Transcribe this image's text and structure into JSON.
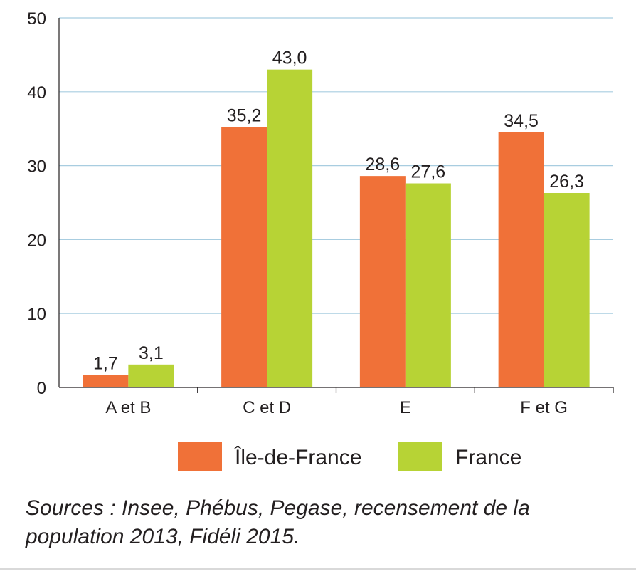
{
  "chart_data": {
    "type": "bar",
    "categories": [
      "A et B",
      "C et D",
      "E",
      "F et G"
    ],
    "series": [
      {
        "name": "Île-de-France",
        "values": [
          1.7,
          35.2,
          28.6,
          34.5
        ],
        "labels": [
          "1,7",
          "35,2",
          "28,6",
          "34,5"
        ],
        "color": "#f07138"
      },
      {
        "name": "France",
        "values": [
          3.1,
          43.0,
          27.6,
          26.3
        ],
        "labels": [
          "3,1",
          "43,0",
          "27,6",
          "26,3"
        ],
        "color": "#b7d335"
      }
    ],
    "ylim": [
      0,
      50
    ],
    "yticks": [
      0,
      10,
      20,
      30,
      40,
      50
    ],
    "grid": true,
    "grid_color": "#a8cde0",
    "legend_position": "bottom"
  },
  "source_note": "Sources : Insee, Phébus, Pegase, recensement de la population 2013, Fidéli 2015."
}
